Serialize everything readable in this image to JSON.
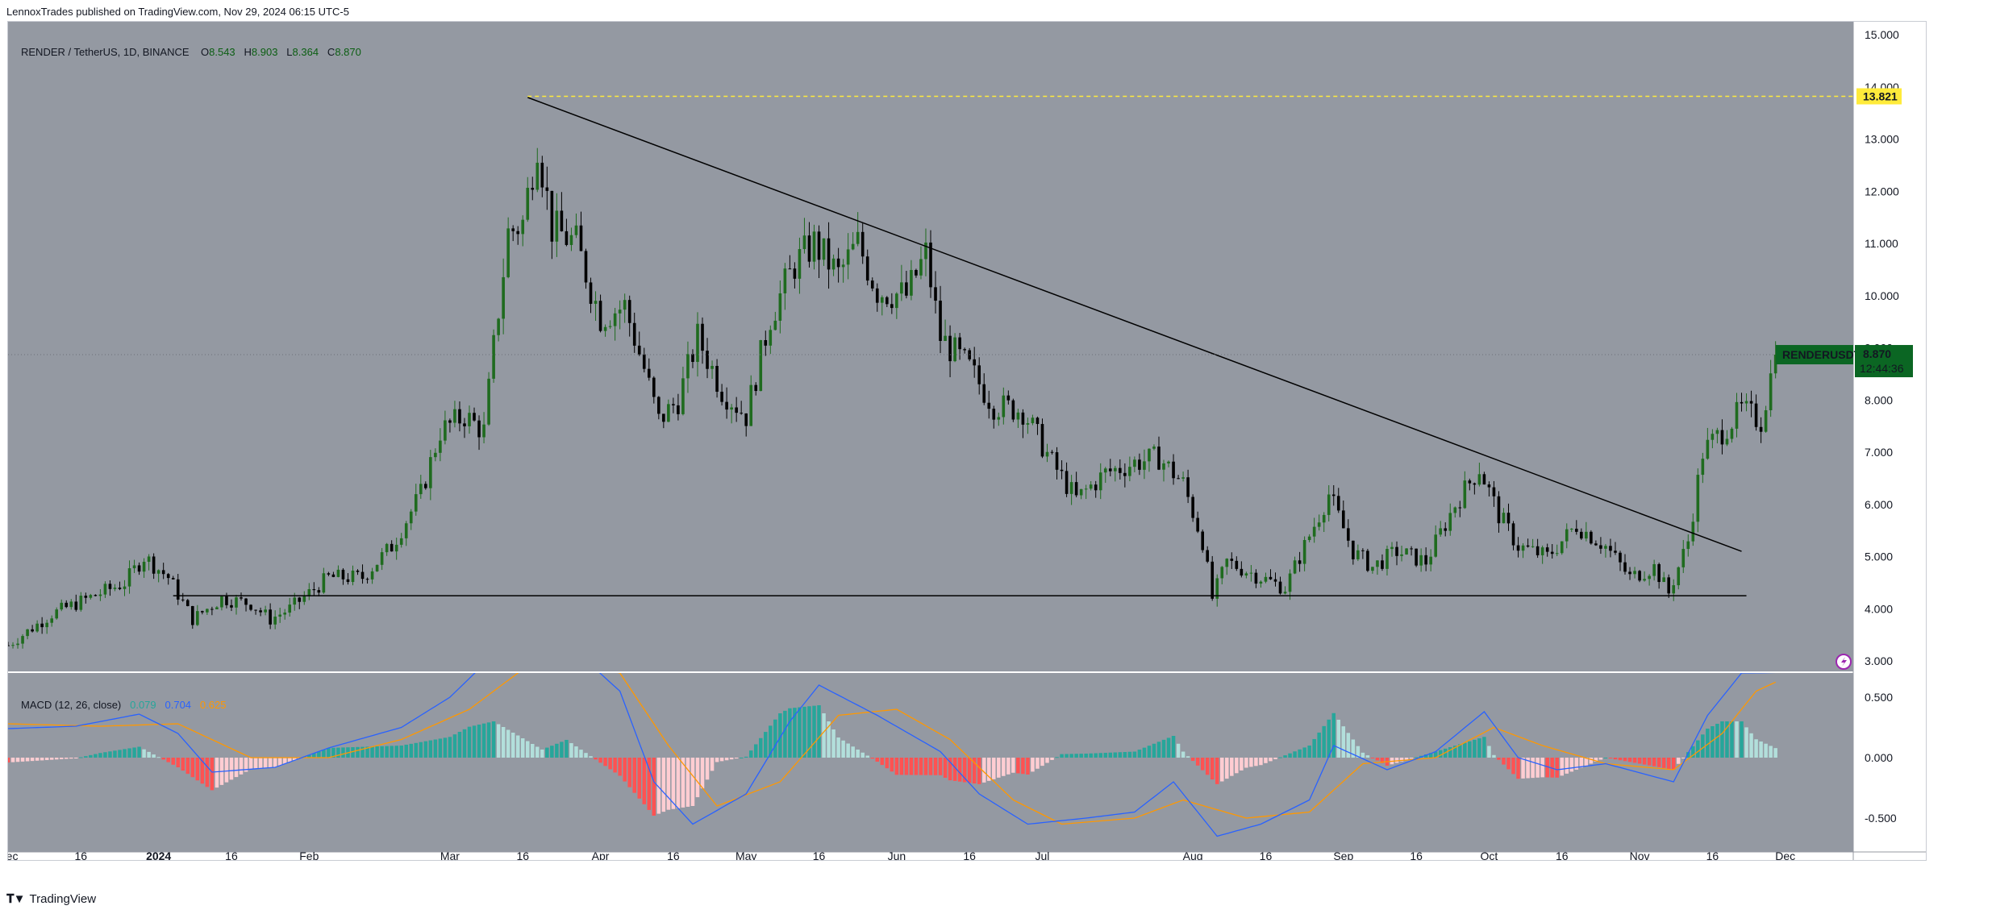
{
  "header": {
    "published": "LennoxTrades published on TradingView.com, Nov 29, 2024 06:15 UTC-5"
  },
  "footer": {
    "brand": "TradingView"
  },
  "legend": {
    "symbol": "RENDER / TetherUS, 1D, BINANCE",
    "open_label": "O",
    "open": "8.543",
    "high_label": "H",
    "high": "8.903",
    "low_label": "L",
    "low": "8.364",
    "close_label": "C",
    "close": "8.870"
  },
  "macd_legend": {
    "title": "MACD (12, 26, close)",
    "hist": "0.079",
    "macd": "0.704",
    "signal": "0.625"
  },
  "price_tags": {
    "resistance": "13.821",
    "ticker": "RENDERUSDT",
    "last": "8.870",
    "countdown": "12:44:36"
  },
  "colors": {
    "background": "#9499a2",
    "up": "#1f6b1f",
    "down": "#000000",
    "hist_pos_strong": "#26a69a",
    "hist_pos_weak": "#b2dfdb",
    "hist_neg_strong": "#ff5252",
    "hist_neg_weak": "#ffcdd2",
    "macd_line": "#2962ff",
    "signal_line": "#ff9800",
    "resistance_tag": "#ffeb3b",
    "last_tag": "#0b6623"
  },
  "chart_data": {
    "type": "candlestick",
    "symbol": "RENDERUSDT",
    "timeframe": "1D",
    "price_axis": {
      "ticks": [
        3.0,
        4.0,
        5.0,
        6.0,
        7.0,
        8.0,
        9.0,
        10.0,
        11.0,
        12.0,
        13.0,
        14.0,
        15.0
      ],
      "tick_labels": [
        "3.000",
        "4.000",
        "5.000",
        "6.000",
        "7.000",
        "8.000",
        "9.000",
        "10.000",
        "11.000",
        "12.000",
        "13.000",
        "14.000",
        "15.000"
      ],
      "range": [
        2.8,
        15.25
      ]
    },
    "macd_axis": {
      "ticks": [
        -0.5,
        0.0,
        0.5
      ],
      "tick_labels": [
        "-0.500",
        "0.000",
        "0.500"
      ],
      "range": [
        -0.78,
        0.7
      ]
    },
    "time_axis": {
      "range": [
        "2023-12-01",
        "2024-12-15"
      ],
      "ticks": [
        {
          "date": "2023-12-01",
          "label": "Dec"
        },
        {
          "date": "2023-12-16",
          "label": "16"
        },
        {
          "date": "2024-01-01",
          "label": "2024",
          "bold": true
        },
        {
          "date": "2024-01-16",
          "label": "16"
        },
        {
          "date": "2024-02-01",
          "label": "Feb"
        },
        {
          "date": "2024-03-01",
          "label": "Mar"
        },
        {
          "date": "2024-03-16",
          "label": "16"
        },
        {
          "date": "2024-04-01",
          "label": "Apr"
        },
        {
          "date": "2024-04-16",
          "label": "16"
        },
        {
          "date": "2024-05-01",
          "label": "May"
        },
        {
          "date": "2024-05-16",
          "label": "16"
        },
        {
          "date": "2024-06-01",
          "label": "Jun"
        },
        {
          "date": "2024-06-16",
          "label": "16"
        },
        {
          "date": "2024-07-01",
          "label": "Jul"
        },
        {
          "date": "2024-08-01",
          "label": "Aug"
        },
        {
          "date": "2024-08-16",
          "label": "16"
        },
        {
          "date": "2024-09-01",
          "label": "Sep"
        },
        {
          "date": "2024-09-16",
          "label": "16"
        },
        {
          "date": "2024-10-01",
          "label": "Oct"
        },
        {
          "date": "2024-10-16",
          "label": "16"
        },
        {
          "date": "2024-11-01",
          "label": "Nov"
        },
        {
          "date": "2024-11-16",
          "label": "16"
        },
        {
          "date": "2024-12-01",
          "label": "Dec"
        }
      ]
    },
    "price_path": [
      [
        "2023-12-01",
        3.3
      ],
      [
        "2023-12-10",
        3.9
      ],
      [
        "2023-12-15",
        4.1
      ],
      [
        "2023-12-20",
        4.3
      ],
      [
        "2023-12-25",
        4.5
      ],
      [
        "2023-12-29",
        5.0
      ],
      [
        "2024-01-03",
        4.6
      ],
      [
        "2024-01-08",
        3.8
      ],
      [
        "2024-01-14",
        4.2
      ],
      [
        "2024-01-20",
        4.1
      ],
      [
        "2024-01-24",
        3.8
      ],
      [
        "2024-01-28",
        4.0
      ],
      [
        "2024-02-05",
        4.6
      ],
      [
        "2024-02-12",
        4.6
      ],
      [
        "2024-02-18",
        5.2
      ],
      [
        "2024-02-24",
        6.2
      ],
      [
        "2024-02-28",
        7.4
      ],
      [
        "2024-03-04",
        7.7
      ],
      [
        "2024-03-08",
        7.4
      ],
      [
        "2024-03-10",
        9.0
      ],
      [
        "2024-03-13",
        11.2
      ],
      [
        "2024-03-16",
        11.4
      ],
      [
        "2024-03-19",
        13.0
      ],
      [
        "2024-03-22",
        11.3
      ],
      [
        "2024-03-27",
        11.0
      ],
      [
        "2024-04-01",
        9.6
      ],
      [
        "2024-04-06",
        9.8
      ],
      [
        "2024-04-10",
        8.6
      ],
      [
        "2024-04-13",
        7.6
      ],
      [
        "2024-04-17",
        8.0
      ],
      [
        "2024-04-21",
        9.2
      ],
      [
        "2024-04-26",
        8.2
      ],
      [
        "2024-05-01",
        7.7
      ],
      [
        "2024-05-06",
        9.6
      ],
      [
        "2024-05-11",
        10.6
      ],
      [
        "2024-05-15",
        11.0
      ],
      [
        "2024-05-20",
        10.4
      ],
      [
        "2024-05-24",
        11.0
      ],
      [
        "2024-05-28",
        10.1
      ],
      [
        "2024-06-03",
        10.0
      ],
      [
        "2024-06-07",
        10.8
      ],
      [
        "2024-06-10",
        9.2
      ],
      [
        "2024-06-16",
        8.6
      ],
      [
        "2024-06-21",
        7.9
      ],
      [
        "2024-06-27",
        7.8
      ],
      [
        "2024-07-03",
        6.8
      ],
      [
        "2024-07-08",
        6.1
      ],
      [
        "2024-07-14",
        6.6
      ],
      [
        "2024-07-20",
        6.8
      ],
      [
        "2024-07-25",
        6.9
      ],
      [
        "2024-07-30",
        6.4
      ],
      [
        "2024-08-03",
        5.3
      ],
      [
        "2024-08-05",
        4.2
      ],
      [
        "2024-08-08",
        4.9
      ],
      [
        "2024-08-15",
        4.6
      ],
      [
        "2024-08-20",
        4.4
      ],
      [
        "2024-08-25",
        5.4
      ],
      [
        "2024-08-29",
        6.2
      ],
      [
        "2024-09-03",
        5.1
      ],
      [
        "2024-09-07",
        4.8
      ],
      [
        "2024-09-12",
        5.1
      ],
      [
        "2024-09-18",
        4.9
      ],
      [
        "2024-09-24",
        6.0
      ],
      [
        "2024-09-29",
        6.7
      ],
      [
        "2024-10-03",
        5.8
      ],
      [
        "2024-10-07",
        5.2
      ],
      [
        "2024-10-13",
        5.0
      ],
      [
        "2024-10-19",
        5.6
      ],
      [
        "2024-10-25",
        5.2
      ],
      [
        "2024-10-30",
        4.6
      ],
      [
        "2024-11-04",
        4.8
      ],
      [
        "2024-11-07",
        4.3
      ],
      [
        "2024-11-11",
        5.3
      ],
      [
        "2024-11-14",
        7.0
      ],
      [
        "2024-11-18",
        7.4
      ],
      [
        "2024-11-22",
        7.8
      ],
      [
        "2024-11-26",
        7.6
      ],
      [
        "2024-11-29",
        8.87
      ]
    ],
    "overlays": {
      "descending_trendline": [
        [
          "2024-03-17",
          13.8
        ],
        [
          "2024-11-22",
          5.1
        ]
      ],
      "support_line": [
        [
          "2024-01-04",
          4.25
        ],
        [
          "2024-11-23",
          4.25
        ]
      ],
      "resistance_level": 13.821,
      "last_price": 8.87
    },
    "macd_path": [
      [
        "2023-12-01",
        0.24
      ],
      [
        "2023-12-15",
        0.26
      ],
      [
        "2023-12-28",
        0.36
      ],
      [
        "2024-01-05",
        0.2
      ],
      [
        "2024-01-12",
        -0.12
      ],
      [
        "2024-01-25",
        -0.08
      ],
      [
        "2024-02-05",
        0.08
      ],
      [
        "2024-02-20",
        0.25
      ],
      [
        "2024-03-01",
        0.5
      ],
      [
        "2024-03-10",
        0.85
      ],
      [
        "2024-03-25",
        0.95
      ],
      [
        "2024-04-05",
        0.55
      ],
      [
        "2024-04-12",
        -0.2
      ],
      [
        "2024-04-20",
        -0.55
      ],
      [
        "2024-05-01",
        -0.3
      ],
      [
        "2024-05-10",
        0.3
      ],
      [
        "2024-05-16",
        0.6
      ],
      [
        "2024-05-28",
        0.35
      ],
      [
        "2024-06-10",
        0.05
      ],
      [
        "2024-06-18",
        -0.3
      ],
      [
        "2024-06-28",
        -0.55
      ],
      [
        "2024-07-10",
        -0.5
      ],
      [
        "2024-07-20",
        -0.45
      ],
      [
        "2024-07-28",
        -0.2
      ],
      [
        "2024-08-06",
        -0.65
      ],
      [
        "2024-08-15",
        -0.55
      ],
      [
        "2024-08-25",
        -0.35
      ],
      [
        "2024-08-30",
        0.1
      ],
      [
        "2024-09-10",
        -0.1
      ],
      [
        "2024-09-20",
        0.05
      ],
      [
        "2024-09-30",
        0.38
      ],
      [
        "2024-10-07",
        0.0
      ],
      [
        "2024-10-15",
        -0.1
      ],
      [
        "2024-10-25",
        -0.05
      ],
      [
        "2024-11-08",
        -0.2
      ],
      [
        "2024-11-15",
        0.35
      ],
      [
        "2024-11-22",
        0.7
      ],
      [
        "2024-11-29",
        0.704
      ]
    ],
    "signal_path": [
      [
        "2023-12-01",
        0.28
      ],
      [
        "2023-12-20",
        0.26
      ],
      [
        "2024-01-05",
        0.28
      ],
      [
        "2024-01-20",
        0.0
      ],
      [
        "2024-02-05",
        0.0
      ],
      [
        "2024-02-20",
        0.15
      ],
      [
        "2024-03-05",
        0.4
      ],
      [
        "2024-03-20",
        0.85
      ],
      [
        "2024-04-05",
        0.7
      ],
      [
        "2024-04-15",
        0.1
      ],
      [
        "2024-04-25",
        -0.4
      ],
      [
        "2024-05-08",
        -0.2
      ],
      [
        "2024-05-20",
        0.35
      ],
      [
        "2024-06-01",
        0.4
      ],
      [
        "2024-06-12",
        0.15
      ],
      [
        "2024-06-25",
        -0.35
      ],
      [
        "2024-07-05",
        -0.55
      ],
      [
        "2024-07-20",
        -0.5
      ],
      [
        "2024-07-30",
        -0.35
      ],
      [
        "2024-08-12",
        -0.5
      ],
      [
        "2024-08-25",
        -0.45
      ],
      [
        "2024-09-05",
        -0.05
      ],
      [
        "2024-09-20",
        0.0
      ],
      [
        "2024-10-02",
        0.25
      ],
      [
        "2024-10-12",
        0.1
      ],
      [
        "2024-10-25",
        -0.05
      ],
      [
        "2024-11-08",
        -0.1
      ],
      [
        "2024-11-18",
        0.2
      ],
      [
        "2024-11-25",
        0.55
      ],
      [
        "2024-11-29",
        0.625
      ]
    ]
  }
}
